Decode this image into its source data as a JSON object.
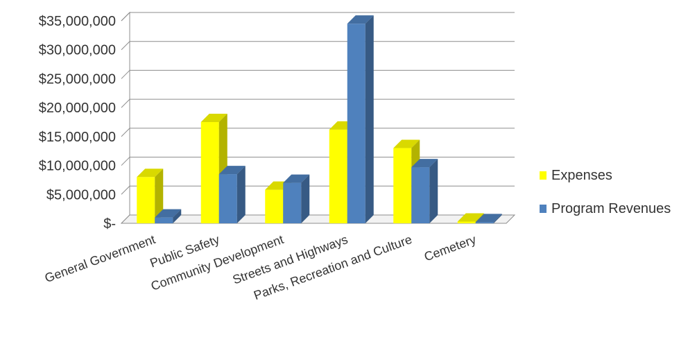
{
  "chart_data": {
    "type": "bar",
    "categories": [
      "General Government",
      "Public Safety",
      "Community Development",
      "Streets and Highways",
      "Parks, Recreation and Culture",
      "Cemetery"
    ],
    "series": [
      {
        "name": "Expenses",
        "values": [
          8000000,
          17500000,
          5800000,
          16200000,
          13000000,
          300000
        ]
      },
      {
        "name": "Program Revenues",
        "values": [
          1000000,
          8500000,
          7000000,
          34500000,
          9700000,
          200000
        ]
      }
    ],
    "y_ticks": [
      "$-",
      "$5,000,000",
      "$10,000,000",
      "$15,000,000",
      "$20,000,000",
      "$25,000,000",
      "$30,000,000",
      "$35,000,000"
    ],
    "ylim": [
      0,
      35000000
    ],
    "grid": true,
    "legend_position": "right",
    "three_d": true,
    "colors": {
      "Expenses": "#ffff00",
      "Program Revenues": "#4f81bd"
    }
  }
}
